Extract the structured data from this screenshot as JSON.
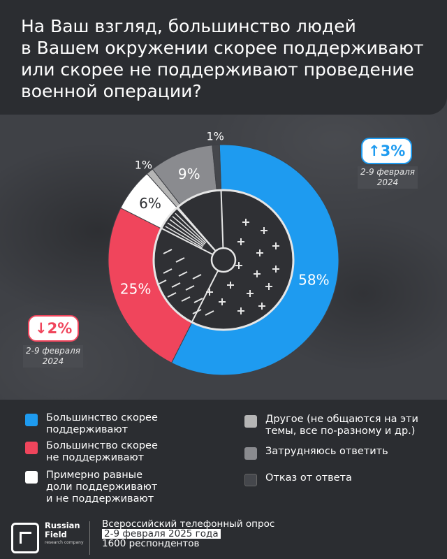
{
  "title": "На Ваш взгляд, большинство людей\nв Вашем окружении скорее поддерживают\nили скорее не поддерживают проведение\nвоенной операции?",
  "chart_data": {
    "type": "pie",
    "variant": "donut",
    "slices": [
      {
        "label": "Большинство скорее поддерживают",
        "value": 58,
        "display": "58%",
        "color": "#1e9bf0"
      },
      {
        "label": "Большинство скорее не поддерживают",
        "value": 25,
        "display": "25%",
        "color": "#f0455c"
      },
      {
        "label": "Примерно равные доли поддерживают и не поддерживают",
        "value": 6,
        "display": "6%",
        "color": "#ffffff"
      },
      {
        "label": "Другое (не общаются на эти темы, все по-разному и др.)",
        "value": 1,
        "display": "1%",
        "color": "#b5b5b5"
      },
      {
        "label": "Затрудняюсь ответить",
        "value": 9,
        "display": "9%",
        "color": "#8a8b8f"
      },
      {
        "label": "Отказ от ответа",
        "value": 1,
        "display": "1%",
        "color": "#45474c"
      }
    ],
    "annotations": [
      {
        "text": "↑3%",
        "period": "2-9 февраля\n2024",
        "color": "#1e9bf0"
      },
      {
        "text": "↓2%",
        "period": "2-9 февраля\n2024",
        "color": "#f0455c"
      }
    ]
  },
  "legend": {
    "items": [
      {
        "label": "Большинство скорее\nподдерживают",
        "color": "#1e9bf0"
      },
      {
        "label": "Большинство скорее\nне поддерживают",
        "color": "#f0455c"
      },
      {
        "label": "Примерно равные\nдоли поддерживают\nи не поддерживают",
        "color": "#ffffff"
      },
      {
        "label": "Другое (не общаются на эти\nтемы, все по-разному и др.)",
        "color": "#b5b5b5"
      },
      {
        "label": "Затрудняюсь ответить",
        "color": "#8a8b8f"
      },
      {
        "label": "Отказ от ответа",
        "color": "#45474c"
      }
    ]
  },
  "footer": {
    "logo": "Russian\nField",
    "logo_sub": "research company",
    "line1": "Всероссийский телефонный опрос",
    "line2": "2-9 февраля 2025  года",
    "line3": "1600 респондентов"
  }
}
